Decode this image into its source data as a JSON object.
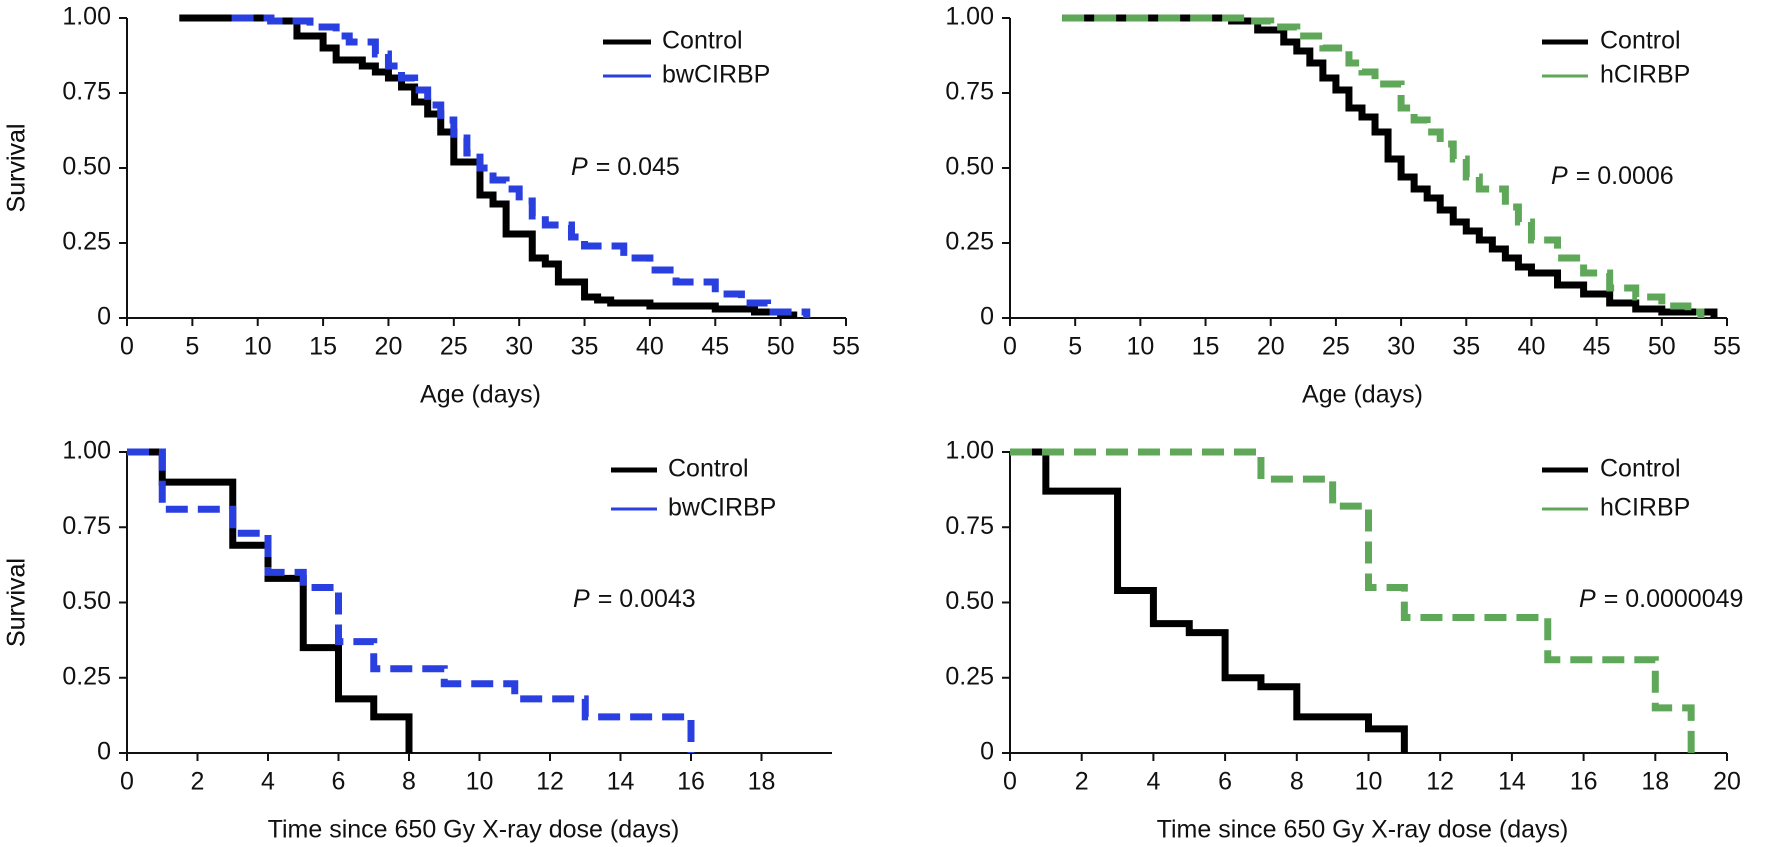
{
  "chart_data": [
    {
      "type": "step",
      "xlabel": "Age (days)",
      "ylabel": "Survival",
      "xlim": [
        0,
        55
      ],
      "xticks": [
        0,
        5,
        10,
        15,
        20,
        25,
        30,
        35,
        40,
        45,
        50,
        55
      ],
      "ylim": [
        0,
        1
      ],
      "yticks": [
        0,
        0.25,
        {
          "value": 0.5,
          "label": "0.50"
        },
        0.75,
        {
          "value": 1,
          "label": "1.00"
        }
      ],
      "p_symbol": "P",
      "p_value": "= 0.045",
      "series": [
        {
          "name": "Control",
          "color": "#000000",
          "dashed": false,
          "x": [
            4,
            11,
            13,
            15,
            16,
            18,
            19,
            20,
            21,
            22,
            23,
            24,
            25,
            27,
            28,
            29,
            31,
            32,
            33,
            35,
            36,
            37,
            40,
            45,
            48,
            50,
            51
          ],
          "values": [
            1,
            0.99,
            0.94,
            0.9,
            0.86,
            0.84,
            0.82,
            0.8,
            0.77,
            0.72,
            0.68,
            0.62,
            0.52,
            0.41,
            0.38,
            0.28,
            0.2,
            0.18,
            0.12,
            0.07,
            0.06,
            0.05,
            0.04,
            0.03,
            0.02,
            0.01,
            0
          ]
        },
        {
          "name": "bwCIRBP",
          "color": "#2a3fe0",
          "dashed": true,
          "x": [
            8,
            11,
            14,
            16,
            17,
            19,
            20,
            21,
            22,
            23,
            24,
            25,
            26,
            27,
            28,
            29,
            30,
            31,
            32,
            34,
            35,
            38,
            40,
            42,
            45,
            47,
            49,
            52
          ],
          "values": [
            1,
            0.99,
            0.97,
            0.94,
            0.92,
            0.88,
            0.84,
            0.8,
            0.76,
            0.71,
            0.66,
            0.6,
            0.55,
            0.5,
            0.46,
            0.43,
            0.39,
            0.34,
            0.31,
            0.27,
            0.24,
            0.2,
            0.16,
            0.12,
            0.08,
            0.05,
            0.02,
            0
          ]
        }
      ]
    },
    {
      "type": "step",
      "xlabel": "Age (days)",
      "ylabel": "Survival",
      "xlim": [
        0,
        55
      ],
      "xticks": [
        0,
        5,
        10,
        15,
        20,
        25,
        30,
        35,
        40,
        45,
        50,
        55
      ],
      "ylim": [
        0,
        1
      ],
      "yticks": [
        0,
        0.25,
        {
          "value": 0.5,
          "label": "0.50"
        },
        0.75,
        {
          "value": 1,
          "label": "1.00"
        }
      ],
      "p_symbol": "P",
      "p_value": "= 0.0006",
      "series": [
        {
          "name": "Control",
          "color": "#000000",
          "dashed": false,
          "x": [
            4,
            17,
            19,
            21,
            22,
            23,
            24,
            25,
            26,
            27,
            28,
            29,
            30,
            31,
            32,
            33,
            34,
            35,
            36,
            37,
            38,
            39,
            40,
            42,
            44,
            46,
            48,
            50,
            54
          ],
          "values": [
            1,
            0.99,
            0.96,
            0.92,
            0.89,
            0.85,
            0.8,
            0.76,
            0.7,
            0.67,
            0.62,
            0.53,
            0.47,
            0.43,
            0.4,
            0.36,
            0.32,
            0.29,
            0.26,
            0.23,
            0.2,
            0.17,
            0.15,
            0.11,
            0.08,
            0.05,
            0.03,
            0.02,
            0
          ]
        },
        {
          "name": "hCIRBP",
          "color": "#5fa85a",
          "dashed": true,
          "x": [
            4,
            18,
            20,
            22,
            24,
            26,
            27,
            28,
            30,
            31,
            32,
            33,
            34,
            35,
            36,
            38,
            39,
            40,
            42,
            44,
            46,
            48,
            50,
            52,
            53
          ],
          "values": [
            1,
            0.99,
            0.97,
            0.94,
            0.9,
            0.85,
            0.82,
            0.78,
            0.7,
            0.66,
            0.62,
            0.58,
            0.53,
            0.47,
            0.43,
            0.37,
            0.32,
            0.26,
            0.2,
            0.15,
            0.1,
            0.07,
            0.04,
            0.02,
            0
          ]
        }
      ]
    },
    {
      "type": "step",
      "xlabel": "Time since 650 Gy X-ray dose (days)",
      "ylabel": "Survival",
      "xlim": [
        0,
        20
      ],
      "xticks": [
        0,
        2,
        4,
        6,
        8,
        10,
        12,
        14,
        16,
        18
      ],
      "ylim": [
        0,
        1
      ],
      "yticks": [
        0,
        0.25,
        {
          "value": 0.5,
          "label": "0.50"
        },
        0.75,
        {
          "value": 1,
          "label": "1.00"
        }
      ],
      "p_symbol": "P",
      "p_value": "= 0.0043",
      "series": [
        {
          "name": "Control",
          "color": "#000000",
          "dashed": false,
          "x": [
            0,
            1,
            3,
            4,
            5,
            6,
            7,
            8
          ],
          "values": [
            1,
            0.9,
            0.69,
            0.58,
            0.35,
            0.18,
            0.12,
            0
          ]
        },
        {
          "name": "bwCIRBP",
          "color": "#2a3fe0",
          "dashed": true,
          "x": [
            0,
            1,
            3,
            4,
            5,
            6,
            7,
            9,
            11,
            13,
            16
          ],
          "values": [
            1,
            0.81,
            0.73,
            0.6,
            0.55,
            0.37,
            0.28,
            0.23,
            0.18,
            0.12,
            0
          ]
        }
      ]
    },
    {
      "type": "step",
      "xlabel": "Time since 650 Gy X-ray dose (days)",
      "ylabel": "Survival",
      "xlim": [
        0,
        20
      ],
      "xticks": [
        0,
        2,
        4,
        6,
        8,
        10,
        12,
        14,
        16,
        18,
        20
      ],
      "ylim": [
        0,
        1
      ],
      "yticks": [
        0,
        0.25,
        {
          "value": 0.5,
          "label": "0.50"
        },
        0.75,
        {
          "value": 1,
          "label": "1.00"
        }
      ],
      "p_symbol": "P",
      "p_value": "= 0.0000049",
      "series": [
        {
          "name": "Control",
          "color": "#000000",
          "dashed": false,
          "x": [
            0,
            1,
            3,
            4,
            5,
            6,
            7,
            8,
            10,
            11
          ],
          "values": [
            1,
            0.87,
            0.54,
            0.43,
            0.4,
            0.25,
            0.22,
            0.12,
            0.08,
            0
          ]
        },
        {
          "name": "hCIRBP",
          "color": "#5fa85a",
          "dashed": true,
          "x": [
            0,
            7,
            9,
            10,
            11,
            15,
            18,
            19
          ],
          "values": [
            1,
            0.91,
            0.82,
            0.55,
            0.45,
            0.31,
            0.15,
            0
          ]
        }
      ]
    }
  ]
}
